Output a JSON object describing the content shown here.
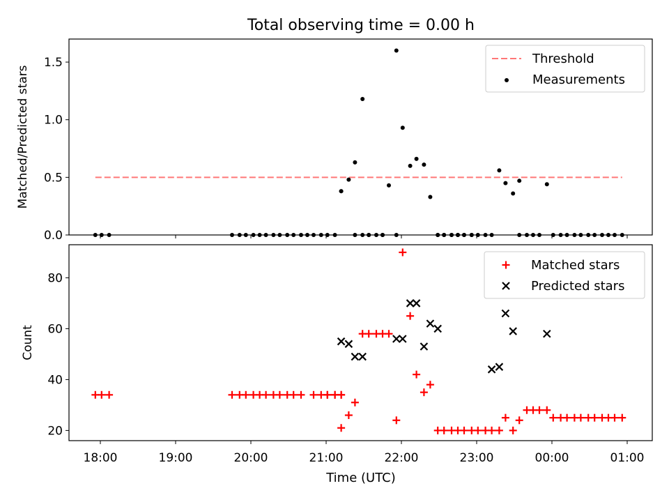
{
  "chart_data": [
    {
      "type": "scatter",
      "title": "Total observing time = 0.00 h",
      "xlabel": "",
      "ylabel": "Matched/Predicted stars",
      "xlim": [
        "17:35",
        "01:20"
      ],
      "ylim": [
        0,
        1.7
      ],
      "yticks": [
        "0.0",
        "0.5",
        "1.0",
        "1.5"
      ],
      "legend_position": "upper right",
      "threshold": {
        "name": "Threshold",
        "value": 0.5,
        "x_range": [
          "17:56",
          "00:56"
        ],
        "color": "#ff7777"
      },
      "series": [
        {
          "name": "Measurements",
          "color": "#000000",
          "x": [
            "17:56",
            "18:01",
            "18:07",
            "19:45",
            "19:51",
            "19:56",
            "20:02",
            "20:07",
            "20:12",
            "20:18",
            "20:23",
            "20:29",
            "20:34",
            "20:40",
            "20:45",
            "20:50",
            "20:56",
            "21:01",
            "21:07",
            "21:12",
            "21:12",
            "21:18",
            "21:23",
            "21:29",
            "21:34",
            "21:40",
            "21:45",
            "21:50",
            "21:56",
            "22:01",
            "22:07",
            "22:12",
            "22:18",
            "22:23",
            "22:29",
            "22:34",
            "22:40",
            "22:45",
            "22:50",
            "22:56",
            "23:01",
            "23:07",
            "23:12",
            "23:18",
            "23:23",
            "23:29",
            "23:34",
            "23:40",
            "23:45",
            "23:50",
            "23:56",
            "00:01",
            "00:07",
            "00:12",
            "00:18",
            "00:23",
            "00:29",
            "00:34",
            "00:40",
            "00:45",
            "00:50",
            "00:56",
            "21:23",
            "21:29",
            "21:34",
            "21:45",
            "21:56",
            "22:29",
            "22:34",
            "22:40",
            "22:56",
            "22:45",
            "22:50",
            "23:34"
          ],
          "y": [
            0,
            0,
            0,
            0,
            0,
            0,
            0,
            0,
            0,
            0,
            0,
            0,
            0,
            0,
            0,
            0,
            0,
            0,
            0,
            0.38,
            0.38,
            0.48,
            0.63,
            1.18,
            0,
            0,
            0,
            0.43,
            1.6,
            0.93,
            0.6,
            0.66,
            0.61,
            0.33,
            0,
            0,
            0,
            0,
            0,
            0,
            0,
            0,
            0,
            0.56,
            0.45,
            0.36,
            0.47,
            0,
            0,
            0,
            0.44,
            0,
            0,
            0,
            0,
            0,
            0,
            0,
            0,
            0,
            0,
            0,
            0,
            0,
            0,
            0,
            0,
            0,
            0,
            0,
            0,
            0,
            0,
            0
          ]
        }
      ]
    },
    {
      "type": "scatter",
      "title": "",
      "xlabel": "Time (UTC)",
      "ylabel": "Count",
      "xlim": [
        "17:35",
        "01:20"
      ],
      "ylim": [
        16,
        93
      ],
      "yticks": [
        "20",
        "40",
        "60",
        "80"
      ],
      "xticks": [
        "18:00",
        "19:00",
        "20:00",
        "21:00",
        "22:00",
        "23:00",
        "00:00",
        "01:00"
      ],
      "legend_position": "upper right",
      "series": [
        {
          "name": "Matched stars",
          "marker": "+",
          "color": "#ff0000",
          "x": [
            "17:56",
            "18:01",
            "18:07",
            "19:45",
            "19:51",
            "19:56",
            "20:02",
            "20:07",
            "20:12",
            "20:18",
            "20:23",
            "20:29",
            "20:34",
            "20:40",
            "20:50",
            "20:56",
            "21:01",
            "21:07",
            "21:12",
            "21:01",
            "21:07",
            "21:12",
            "21:12",
            "21:18",
            "21:23",
            "21:29",
            "21:34",
            "21:40",
            "21:45",
            "21:50",
            "21:56",
            "22:01",
            "22:07",
            "22:12",
            "22:18",
            "22:23",
            "22:29",
            "22:34",
            "22:40",
            "22:45",
            "22:50",
            "22:56",
            "23:01",
            "23:07",
            "23:12",
            "23:18",
            "23:23",
            "23:29",
            "23:34",
            "23:40",
            "23:45",
            "23:50",
            "23:56",
            "00:01",
            "00:07",
            "00:12",
            "00:18",
            "00:23",
            "00:29",
            "00:34",
            "00:40",
            "00:45",
            "00:50",
            "00:56"
          ],
          "y": [
            34,
            34,
            34,
            34,
            34,
            34,
            34,
            34,
            34,
            34,
            34,
            34,
            34,
            34,
            34,
            34,
            34,
            34,
            34,
            34,
            34,
            34,
            21,
            26,
            31,
            58,
            58,
            58,
            58,
            58,
            24,
            90,
            65,
            42,
            35,
            38,
            20,
            20,
            20,
            20,
            20,
            20,
            20,
            20,
            20,
            20,
            25,
            20,
            24,
            28,
            28,
            28,
            28,
            25,
            25,
            25,
            25,
            25,
            25,
            25,
            25,
            25,
            25,
            25
          ]
        },
        {
          "name": "Predicted stars",
          "marker": "x",
          "color": "#000000",
          "x": [
            "21:12",
            "21:18",
            "21:23",
            "21:29",
            "21:56",
            "22:01",
            "22:07",
            "22:12",
            "22:18",
            "22:23",
            "22:29",
            "23:12",
            "23:18",
            "23:23",
            "23:29",
            "23:56"
          ],
          "y": [
            55,
            54,
            49,
            49,
            56,
            56,
            70,
            70,
            53,
            62,
            60,
            44,
            45,
            66,
            59,
            58
          ]
        }
      ]
    }
  ]
}
